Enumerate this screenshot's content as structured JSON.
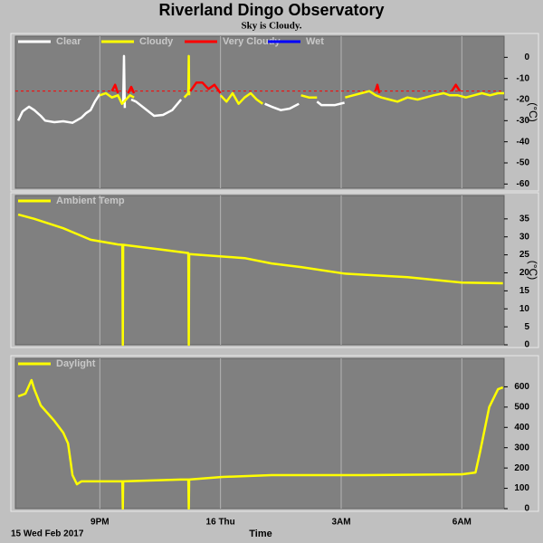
{
  "title": "Riverland Dingo Observatory",
  "subtitle": "Sky is Cloudy.",
  "date_label": "15 Wed Feb 2017",
  "x_label": "Time",
  "chart_data": [
    {
      "type": "line",
      "y_label": "(°C)",
      "xlim": [
        18.9,
        31.05
      ],
      "xticks": [
        21,
        24,
        27,
        30
      ],
      "ylim": [
        -62,
        10
      ],
      "yticks": [
        0,
        -10,
        -20,
        -30,
        -40,
        -50,
        -60
      ],
      "reference_line": -16,
      "reference_color": "#ff0000",
      "series": [
        {
          "name": "Clear",
          "color": "#ffffff",
          "x": [
            18.97,
            19.08,
            19.24,
            19.37,
            19.53,
            19.64,
            19.87,
            20.09,
            20.32,
            20.54,
            20.66,
            20.77,
            20.88,
            21.0,
            21.5,
            21.58,
            21.6,
            21.62,
            21.7,
            21.78,
            21.9,
            22.12,
            22.35,
            22.57,
            22.8,
            23.02,
            23.1,
            25.1,
            25.27,
            25.5,
            25.72,
            25.95,
            26.0,
            26.4,
            26.51,
            26.85,
            27.08
          ],
          "values": [
            -30,
            -25.6,
            -23.4,
            -25,
            -27.7,
            -30,
            -30.7,
            -30.3,
            -31,
            -28.6,
            -26.4,
            -25,
            -20.9,
            -17.4,
            null,
            -22,
            0.6,
            -24,
            null,
            -20,
            -21,
            -24.3,
            -27.7,
            -27.3,
            -25,
            -20,
            null,
            -22,
            -23.4,
            -25,
            -24.3,
            -22,
            null,
            -21,
            -22.6,
            -22.6,
            -21.5
          ]
        },
        {
          "name": "Cloudy",
          "color": "#ffff00",
          "x": [
            21.0,
            21.15,
            21.3,
            21.45,
            21.55,
            21.65,
            21.75,
            21.85,
            21.9,
            23.1,
            23.2,
            23.21,
            23.22,
            23.3,
            24.0,
            24.15,
            24.3,
            24.45,
            24.6,
            24.75,
            24.9,
            25.05,
            25.1,
            26.0,
            26.2,
            26.4,
            26.5,
            27.1,
            27.3,
            27.5,
            27.7,
            27.86,
            28.0,
            28.2,
            28.4,
            28.65,
            28.9,
            29.1,
            29.3,
            29.55,
            29.7,
            29.9,
            30.1,
            30.3,
            30.5,
            30.7,
            30.9,
            31.05
          ],
          "values": [
            -18,
            -17,
            -19,
            -18,
            -22,
            -20,
            -18,
            -19,
            null,
            -19,
            -17,
            0.6,
            -18,
            null,
            -18,
            -21,
            -17,
            -22,
            -19,
            -17,
            -20,
            -22,
            null,
            -18,
            -19,
            -19,
            null,
            -19,
            -18,
            -17,
            -16,
            -18,
            -19,
            -20,
            -21,
            -19,
            -20,
            -19,
            -18,
            -17,
            -18,
            -18,
            -19,
            -18,
            -17,
            -18,
            -17,
            -17
          ]
        },
        {
          "name": "Very Cloudy",
          "color": "#ff0000",
          "x": [
            21.3,
            21.38,
            21.45,
            21.5,
            21.7,
            21.78,
            21.85,
            21.9,
            23.25,
            23.4,
            23.55,
            23.7,
            23.85,
            24.0,
            24.05,
            27.85,
            27.9,
            27.95,
            28.0,
            29.75,
            29.85,
            29.95
          ],
          "values": [
            -16,
            -13,
            -17,
            null,
            -17,
            -14,
            -17,
            null,
            -16,
            -12,
            -12,
            -15,
            -13,
            -17,
            null,
            -16,
            -13,
            -17,
            null,
            -16,
            -13,
            -16
          ]
        },
        {
          "name": "Wet",
          "color": "#0000ff",
          "x": [],
          "values": []
        }
      ]
    },
    {
      "type": "line",
      "y_label": "(°C)",
      "xlim": [
        18.9,
        31.05
      ],
      "xticks": [
        21,
        24,
        27,
        30
      ],
      "ylim": [
        0,
        41.5
      ],
      "yticks": [
        0,
        5,
        10,
        15,
        20,
        25,
        30,
        35
      ],
      "series": [
        {
          "name": "Ambient Temp",
          "color": "#ffff00",
          "x": [
            18.97,
            19.37,
            20.09,
            20.77,
            21.45,
            21.56,
            21.57,
            21.58,
            22.57,
            23.2,
            23.21,
            23.22,
            24.6,
            25.27,
            26.0,
            27.08,
            28.65,
            30.0,
            31.02
          ],
          "values": [
            36.2,
            35,
            32.4,
            29.2,
            27.9,
            27.8,
            0,
            27.8,
            26.4,
            25.5,
            0,
            25.2,
            24.1,
            22.6,
            21.6,
            19.8,
            18.8,
            17.3,
            17.1
          ]
        }
      ]
    },
    {
      "type": "line",
      "xlim": [
        18.9,
        31.05
      ],
      "xticks": [
        {
          "value": 21,
          "label": "9PM"
        },
        {
          "value": 24,
          "label": "16 Thu"
        },
        {
          "value": 27,
          "label": "3AM"
        },
        {
          "value": 30,
          "label": "6AM"
        }
      ],
      "ylim": [
        0,
        740
      ],
      "yticks": [
        0,
        100,
        200,
        300,
        400,
        500,
        600
      ],
      "series": [
        {
          "name": "Daylight",
          "color": "#ffff00",
          "x": [
            18.97,
            19.15,
            19.3,
            19.37,
            19.53,
            19.87,
            20.09,
            20.21,
            20.32,
            20.43,
            20.54,
            21.56,
            21.57,
            21.58,
            23.02,
            23.2,
            23.21,
            23.22,
            24.05,
            25.27,
            27.53,
            30.0,
            30.34,
            30.45,
            30.68,
            30.9,
            31.02
          ],
          "values": [
            553,
            566,
            633,
            588,
            508,
            432,
            374,
            321,
            165,
            120,
            134,
            134,
            0,
            134,
            143,
            143,
            0,
            143,
            156,
            165,
            165,
            169,
            178,
            276,
            500,
            588,
            597
          ]
        }
      ]
    }
  ]
}
